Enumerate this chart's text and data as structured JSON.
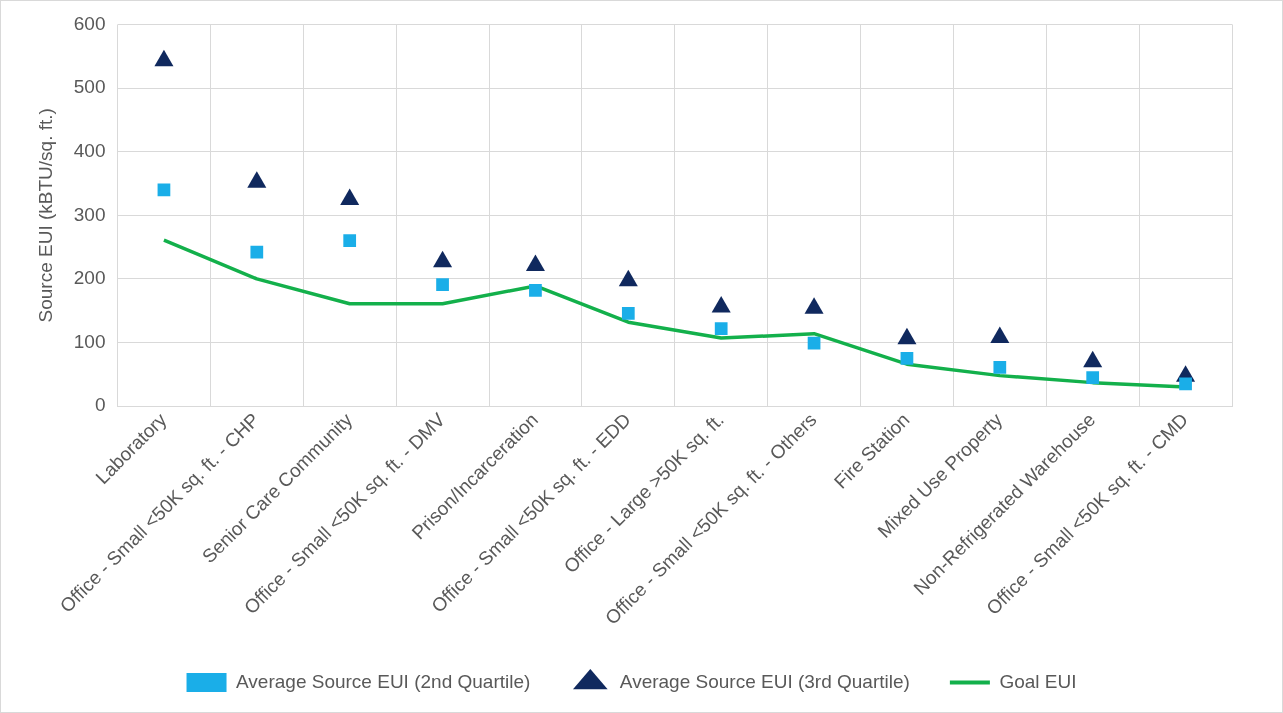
{
  "chart_data": {
    "type": "line",
    "ylabel": "Source EUI (kBTU/sq. ft.)",
    "categories": [
      "Laboratory",
      "Office - Small <50K sq. ft. - CHP",
      "Senior Care Community",
      "Office - Small <50K sq. ft. - DMV",
      "Prison/Incarceration",
      "Office - Small <50K sq. ft. - EDD",
      "Office - Large >50K sq. ft.",
      "Office - Small <50K sq. ft. - Others",
      "Fire Station",
      "Mixed Use Property",
      "Non-Refrigerated Warehouse",
      "Office - Small <50K sq. ft. - CMD"
    ],
    "series": [
      {
        "name": "Average Source EUI (2nd Quartile)",
        "type": "scatter",
        "marker": "square",
        "color": "#1aaee8",
        "values": [
          340,
          242,
          260,
          191,
          182,
          146,
          122,
          99,
          75,
          61,
          45,
          35
        ]
      },
      {
        "name": "Average Source EUI (3rd Quartile)",
        "type": "scatter",
        "marker": "triangle",
        "color": "#10295e",
        "values": [
          543,
          352,
          325,
          227,
          221,
          197,
          156,
          154,
          106,
          108,
          70,
          47
        ]
      },
      {
        "name": "Goal EUI",
        "type": "line",
        "marker": "none",
        "color": "#13b04b",
        "values": [
          261,
          200,
          161,
          161,
          189,
          132,
          107,
          114,
          66,
          48,
          37,
          30
        ]
      }
    ],
    "ylim": [
      0,
      600
    ],
    "yticks": [
      0,
      100,
      200,
      300,
      400,
      500,
      600
    ],
    "grid": true,
    "legend": "bottom"
  }
}
